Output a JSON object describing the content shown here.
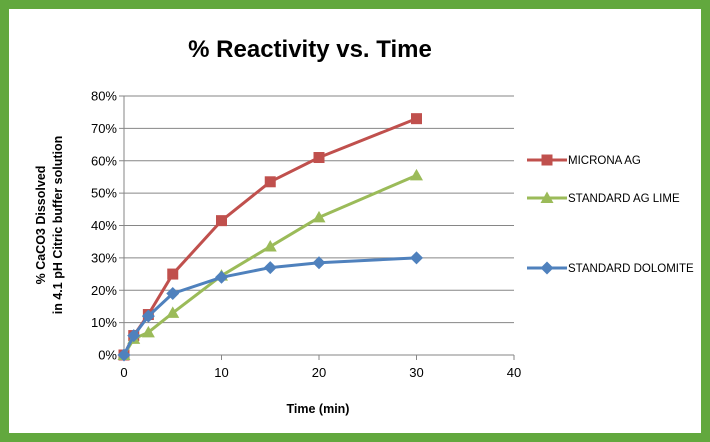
{
  "chart_data": {
    "type": "line",
    "title": "% Reactivity vs. Time",
    "xlabel": "Time (min)",
    "ylabel_lines": [
      "% CaCO3 Dissolved",
      "in 4.1 pH Citric buffer solution"
    ],
    "xlim": [
      0,
      40
    ],
    "ylim": [
      0,
      0.8
    ],
    "x_ticks": [
      0,
      10,
      20,
      30,
      40
    ],
    "x_tick_labels": [
      "0",
      "10",
      "20",
      "30",
      "40"
    ],
    "y_ticks": [
      0,
      0.1,
      0.2,
      0.3,
      0.4,
      0.5,
      0.6,
      0.7,
      0.8
    ],
    "y_tick_labels": [
      "0%",
      "10%",
      "20%",
      "30%",
      "40%",
      "50%",
      "60%",
      "70%",
      "80%"
    ],
    "grid": "horizontal",
    "legend_position": "right",
    "series": [
      {
        "name": "MICRONA AG",
        "color": "#c0504d",
        "marker": "square",
        "x": [
          0,
          1,
          2.5,
          5,
          10,
          15,
          20,
          30
        ],
        "y": [
          0.0,
          0.06,
          0.125,
          0.25,
          0.415,
          0.535,
          0.61,
          0.73
        ]
      },
      {
        "name": "STANDARD AG LIME",
        "color": "#9bbb59",
        "marker": "triangle",
        "x": [
          0,
          1,
          2.5,
          5,
          10,
          15,
          20,
          30
        ],
        "y": [
          0.0,
          0.05,
          0.07,
          0.13,
          0.245,
          0.335,
          0.425,
          0.555
        ]
      },
      {
        "name": "STANDARD DOLOMITE",
        "color": "#4f81bd",
        "marker": "diamond",
        "x": [
          0,
          1,
          2.5,
          5,
          10,
          15,
          20,
          30
        ],
        "y": [
          0.0,
          0.06,
          0.12,
          0.19,
          0.24,
          0.27,
          0.285,
          0.3
        ]
      }
    ]
  }
}
